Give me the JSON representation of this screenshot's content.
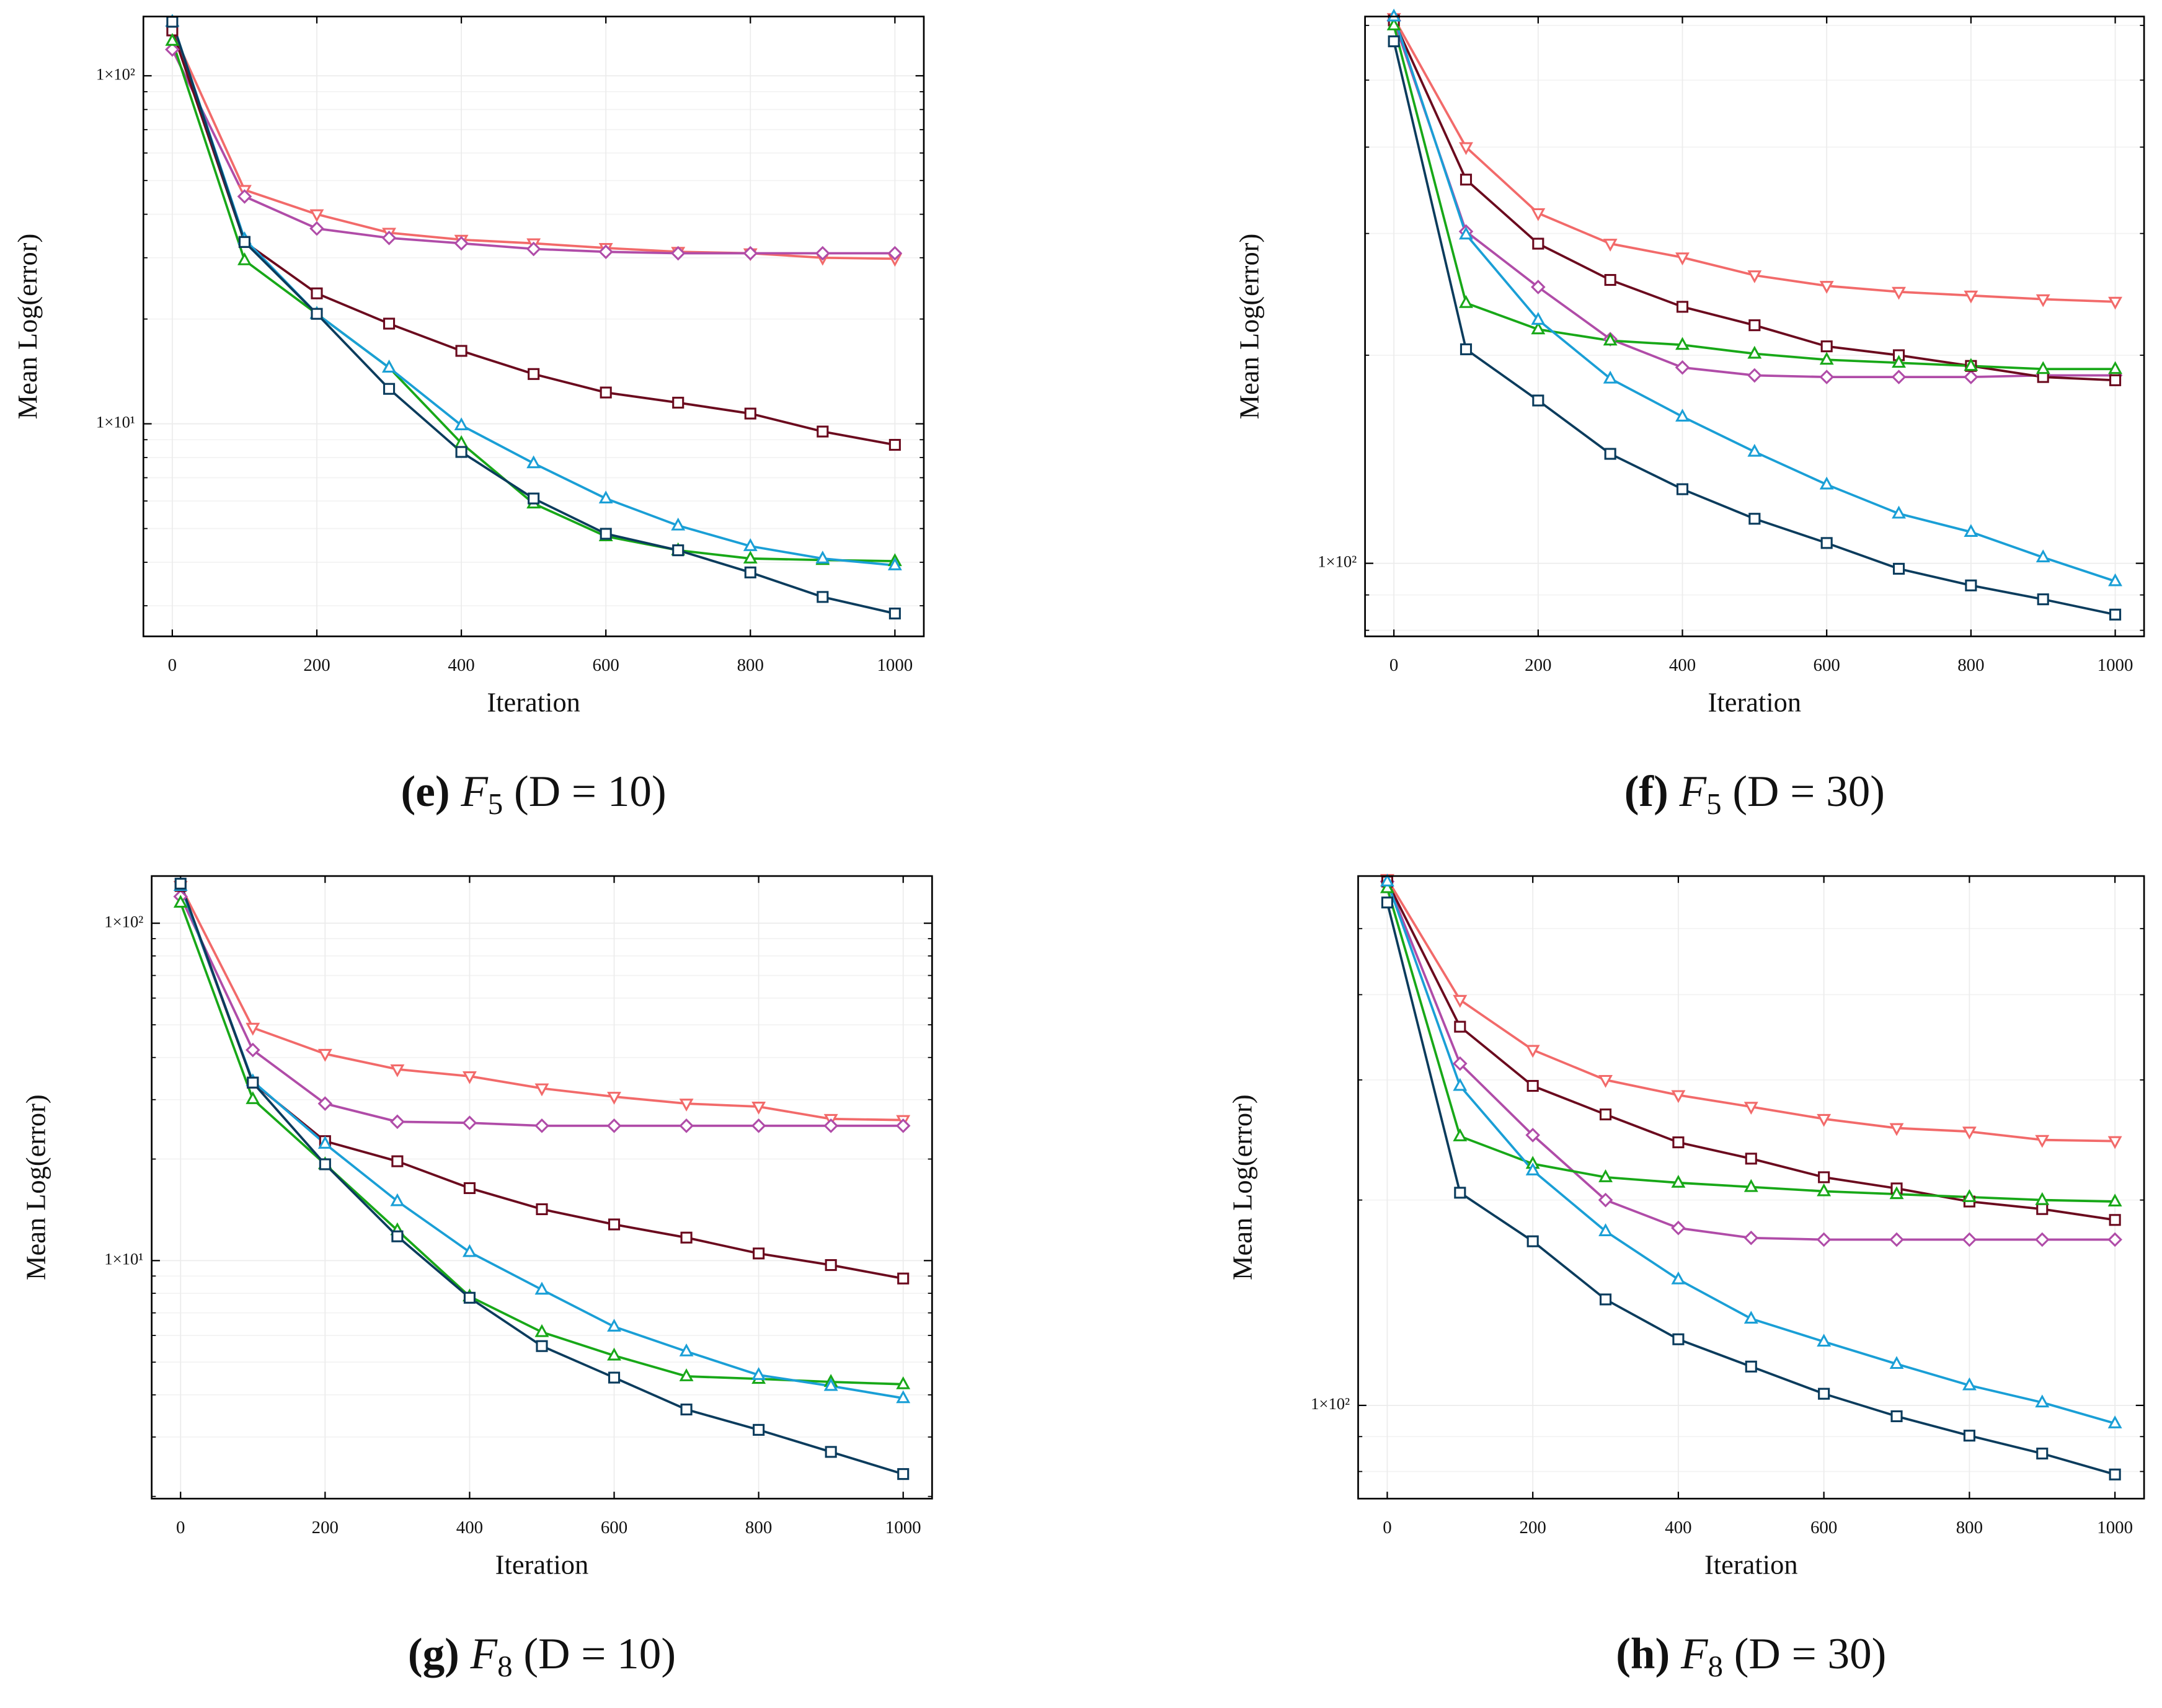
{
  "chart_data": [
    {
      "type": "line",
      "caption": {
        "label": "(e)",
        "func": "F",
        "index": "5",
        "args": "(D = 10)"
      },
      "xlabel": "Iteration",
      "ylabel": "Mean Log(error)",
      "log": true,
      "grid": true,
      "x": [
        0,
        100,
        200,
        300,
        400,
        500,
        600,
        700,
        800,
        900,
        1000
      ],
      "xlim": [
        -40,
        1040
      ],
      "xticks": [
        0,
        200,
        400,
        600,
        800,
        1000
      ],
      "ylim": [
        2.45,
        148
      ],
      "yticks": [
        {
          "value": 100,
          "label": "1×10²"
        },
        {
          "value": 10,
          "label": "1×10¹"
        }
      ],
      "series": [
        {
          "color": "#f26a6a",
          "marker": "triangle-down",
          "values": [
            135,
            47,
            40,
            35.4,
            33.8,
            33,
            32,
            31.2,
            30.9,
            30,
            29.8
          ]
        },
        {
          "color": "#b04ca8",
          "marker": "diamond",
          "values": [
            119,
            45,
            36.4,
            34.2,
            33,
            31.8,
            31.2,
            30.9,
            30.9,
            30.9,
            30.9
          ]
        },
        {
          "color": "#6b0a1e",
          "marker": "square",
          "values": [
            135,
            33.3,
            23.7,
            19.4,
            16.2,
            13.9,
            12.3,
            11.5,
            10.7,
            9.5,
            8.7
          ]
        },
        {
          "color": "#18a818",
          "marker": "triangle-up",
          "values": [
            126,
            29.5,
            20.7,
            14.5,
            8.8,
            5.9,
            4.75,
            4.33,
            4.1,
            4.06,
            4.03
          ]
        },
        {
          "color": "#1a9fd6",
          "marker": "triangle-up",
          "values": [
            143,
            33.9,
            20.7,
            14.5,
            9.9,
            7.7,
            6.1,
            5.1,
            4.45,
            4.1,
            3.92
          ]
        },
        {
          "color": "#0b3c5d",
          "marker": "square",
          "values": [
            143,
            33.3,
            20.7,
            12.6,
            8.3,
            6.1,
            4.83,
            4.33,
            3.74,
            3.18,
            2.85
          ]
        }
      ]
    },
    {
      "type": "line",
      "caption": {
        "label": "(f)",
        "func": "F",
        "index": "5",
        "args": "(D = 30)"
      },
      "xlabel": "Iteration",
      "ylabel": "Mean Log(error)",
      "log": true,
      "grid": true,
      "x": [
        0,
        100,
        200,
        300,
        400,
        500,
        600,
        700,
        800,
        900,
        1000
      ],
      "xlim": [
        -40,
        1040
      ],
      "xticks": [
        0,
        200,
        400,
        600,
        800,
        1000
      ],
      "ylim": [
        78.4,
        618
      ],
      "yticks": [
        {
          "value": 100,
          "label": "1×10²"
        }
      ],
      "series": [
        {
          "color": "#f26a6a",
          "marker": "triangle-down",
          "values": [
            615,
            400,
            321,
            290,
            277,
            261,
            252,
            247,
            244,
            241,
            239
          ]
        },
        {
          "color": "#b04ca8",
          "marker": "diamond",
          "values": [
            610,
            302,
            251,
            211,
            192,
            187,
            186,
            186,
            186,
            187,
            187
          ]
        },
        {
          "color": "#6b0a1e",
          "marker": "square",
          "values": [
            610,
            359,
            290,
            257,
            235,
            221,
            206,
            200,
            193,
            186,
            184
          ]
        },
        {
          "color": "#18a818",
          "marker": "triangle-up",
          "values": [
            600,
            238,
            218,
            210,
            207,
            201,
            197,
            195,
            193,
            191,
            191
          ]
        },
        {
          "color": "#1a9fd6",
          "marker": "triangle-up",
          "values": [
            618,
            299,
            225,
            185,
            163,
            145,
            130,
            118,
            111,
            102,
            94.2
          ]
        },
        {
          "color": "#0b3c5d",
          "marker": "square",
          "values": [
            569,
            204,
            172,
            144,
            128,
            116,
            107,
            98.2,
            92.9,
            88.7,
            84.3
          ]
        }
      ]
    },
    {
      "type": "line",
      "caption": {
        "label": "(g)",
        "func": "F",
        "index": "8",
        "args": "(D = 10)"
      },
      "xlabel": "Iteration",
      "ylabel": "Mean Log(error)",
      "log": true,
      "grid": true,
      "x": [
        0,
        100,
        200,
        300,
        400,
        500,
        600,
        700,
        800,
        900,
        1000
      ],
      "xlim": [
        -40,
        1040
      ],
      "xticks": [
        0,
        200,
        400,
        600,
        800,
        1000
      ],
      "ylim": [
        1.97,
        138
      ],
      "yticks": [
        {
          "value": 100,
          "label": "1×10²"
        },
        {
          "value": 10,
          "label": "1×10¹"
        }
      ],
      "series": [
        {
          "color": "#f26a6a",
          "marker": "triangle-down",
          "values": [
            129,
            49,
            41,
            36.9,
            35.2,
            32.4,
            30.6,
            29.2,
            28.6,
            26.3,
            26.1
          ]
        },
        {
          "color": "#b04ca8",
          "marker": "diamond",
          "values": [
            120,
            42.1,
            29.2,
            25.8,
            25.6,
            25.1,
            25.1,
            25.1,
            25.1,
            25.1,
            25.1
          ]
        },
        {
          "color": "#6b0a1e",
          "marker": "square",
          "values": [
            129,
            33.7,
            22.6,
            19.7,
            16.4,
            14.2,
            12.8,
            11.7,
            10.5,
            9.7,
            8.85
          ]
        },
        {
          "color": "#18a818",
          "marker": "triangle-up",
          "values": [
            115,
            30.1,
            19.3,
            12.3,
            7.83,
            6.14,
            5.23,
            4.54,
            4.46,
            4.37,
            4.3
          ]
        },
        {
          "color": "#1a9fd6",
          "marker": "triangle-up",
          "values": [
            129,
            34,
            22.2,
            15,
            10.6,
            8.2,
            6.37,
            5.38,
            4.58,
            4.25,
            3.91
          ]
        },
        {
          "color": "#0b3c5d",
          "marker": "square",
          "values": [
            131,
            33.7,
            19.3,
            11.8,
            7.76,
            5.58,
            4.5,
            3.62,
            3.15,
            2.71,
            2.33
          ]
        }
      ]
    },
    {
      "type": "line",
      "caption": {
        "label": "(h)",
        "func": "F",
        "index": "8",
        "args": "(D = 30)"
      },
      "xlabel": "Iteration",
      "ylabel": "Mean Log(error)",
      "log": true,
      "grid": true,
      "x": [
        0,
        100,
        200,
        300,
        400,
        500,
        600,
        700,
        800,
        900,
        1000
      ],
      "xlim": [
        -40,
        1040
      ],
      "xticks": [
        0,
        200,
        400,
        600,
        800,
        1000
      ],
      "ylim": [
        73,
        597
      ],
      "yticks": [
        {
          "value": 100,
          "label": "1×10²"
        }
      ],
      "series": [
        {
          "color": "#f26a6a",
          "marker": "triangle-down",
          "values": [
            591,
            393,
            332,
            300,
            285,
            274,
            263,
            255,
            252,
            245,
            244
          ]
        },
        {
          "color": "#b04ca8",
          "marker": "diamond",
          "values": [
            586,
            317,
            249,
            200,
            182,
            176,
            175,
            175,
            175,
            175,
            175
          ]
        },
        {
          "color": "#6b0a1e",
          "marker": "square",
          "values": [
            586,
            359,
            294,
            267,
            243,
            230,
            216,
            208,
            199,
            194,
            187
          ]
        },
        {
          "color": "#18a818",
          "marker": "triangle-up",
          "values": [
            573,
            248,
            226,
            216,
            212,
            209,
            206,
            204,
            202,
            200,
            199
          ]
        },
        {
          "color": "#1a9fd6",
          "marker": "triangle-up",
          "values": [
            586,
            294,
            221,
            180,
            153,
            134,
            124,
            115,
            107,
            101,
            94.1
          ]
        },
        {
          "color": "#0b3c5d",
          "marker": "square",
          "values": [
            546,
            205,
            174,
            143,
            125,
            114,
            104,
            96.4,
            90.3,
            85,
            79.2
          ]
        }
      ]
    }
  ]
}
